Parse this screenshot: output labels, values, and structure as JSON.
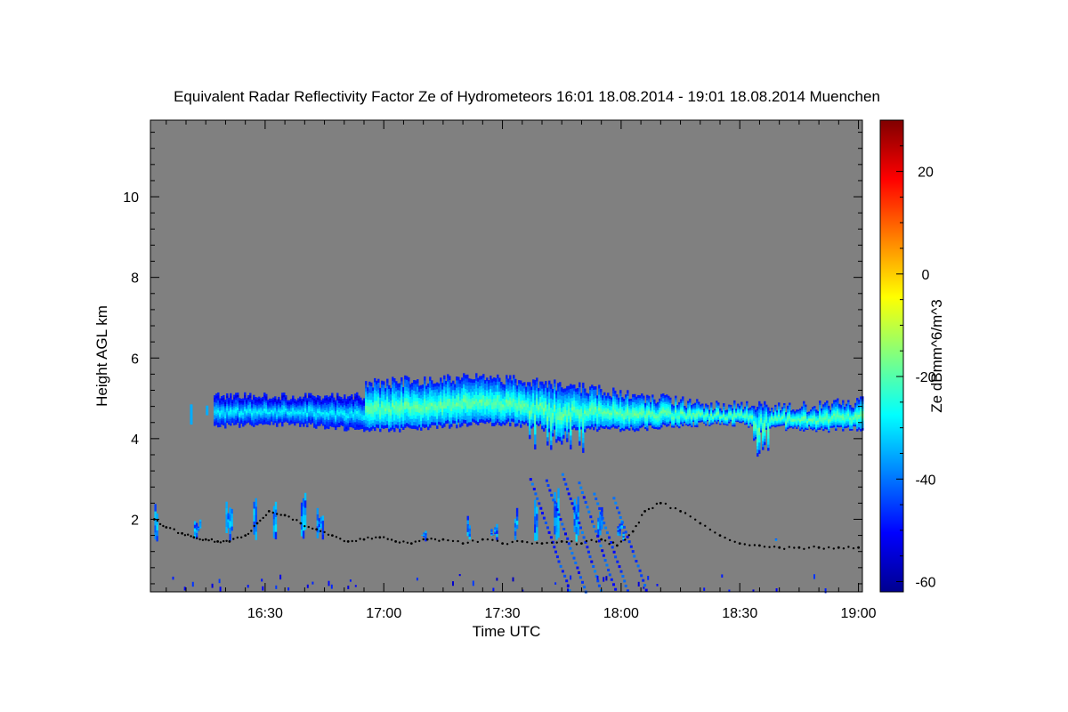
{
  "chart_data": {
    "type": "heatmap",
    "title": "Equivalent Radar Reflectivity Factor Ze of Hydrometeors   16:01 18.08.2014 - 19:01 18.08.2014 Muenchen",
    "xlabel": "Time UTC",
    "ylabel": "Height AGL km",
    "x_ticks": [
      "16:30",
      "17:00",
      "17:30",
      "18:00",
      "18:30",
      "19:00"
    ],
    "x_tick_minutes": [
      990,
      1020,
      1050,
      1080,
      1110,
      1140
    ],
    "xlim_minutes": [
      961,
      1141
    ],
    "y_ticks": [
      2,
      4,
      6,
      8,
      10
    ],
    "ylim": [
      0.2,
      11.9
    ],
    "background_color": "#808080",
    "colorbar": {
      "label": "Ze dBmm^6/m^3",
      "ticks": [
        20,
        0,
        -20,
        -40,
        -60
      ],
      "range": [
        -62,
        30
      ],
      "colormap": "jet",
      "colors": [
        "#00008f",
        "#0000ff",
        "#0080ff",
        "#00ffff",
        "#80ff80",
        "#ffff00",
        "#ff8000",
        "#ff0000",
        "#800000"
      ]
    },
    "features": [
      {
        "kind": "stratiform layer",
        "t_start": 977,
        "t_end": 1141,
        "base_km": 4.2,
        "top_km": 5.6,
        "core_dbz": -15
      },
      {
        "kind": "boundary-layer echoes",
        "t_start": 962,
        "t_end": 1086,
        "base_km": 1.3,
        "top_km": 2.9,
        "core_dbz": -35
      },
      {
        "kind": "fall streak",
        "t_start": 1050,
        "t_end": 1082,
        "base_km": 0.2,
        "top_km": 3.2,
        "core_dbz": -40
      }
    ],
    "cloud_base_points": [
      [
        962,
        2.0
      ],
      [
        965,
        1.8
      ],
      [
        969,
        1.65
      ],
      [
        972,
        1.55
      ],
      [
        975,
        1.5
      ],
      [
        978,
        1.45
      ],
      [
        981,
        1.45
      ],
      [
        985,
        1.6
      ],
      [
        988,
        1.9
      ],
      [
        991,
        2.2
      ],
      [
        995,
        2.1
      ],
      [
        999,
        1.9
      ],
      [
        1003,
        1.75
      ],
      [
        1007,
        1.6
      ],
      [
        1011,
        1.45
      ],
      [
        1015,
        1.5
      ],
      [
        1019,
        1.55
      ],
      [
        1023,
        1.45
      ],
      [
        1027,
        1.4
      ],
      [
        1031,
        1.5
      ],
      [
        1035,
        1.5
      ],
      [
        1040,
        1.4
      ],
      [
        1045,
        1.5
      ],
      [
        1050,
        1.4
      ],
      [
        1055,
        1.45
      ],
      [
        1060,
        1.4
      ],
      [
        1065,
        1.45
      ],
      [
        1070,
        1.4
      ],
      [
        1075,
        1.5
      ],
      [
        1079,
        1.35
      ],
      [
        1083,
        1.7
      ],
      [
        1086,
        2.2
      ],
      [
        1090,
        2.4
      ],
      [
        1095,
        2.2
      ],
      [
        1100,
        1.9
      ],
      [
        1105,
        1.6
      ],
      [
        1110,
        1.4
      ],
      [
        1115,
        1.35
      ],
      [
        1120,
        1.3
      ],
      [
        1125,
        1.3
      ],
      [
        1130,
        1.3
      ],
      [
        1135,
        1.3
      ],
      [
        1140,
        1.3
      ]
    ]
  }
}
